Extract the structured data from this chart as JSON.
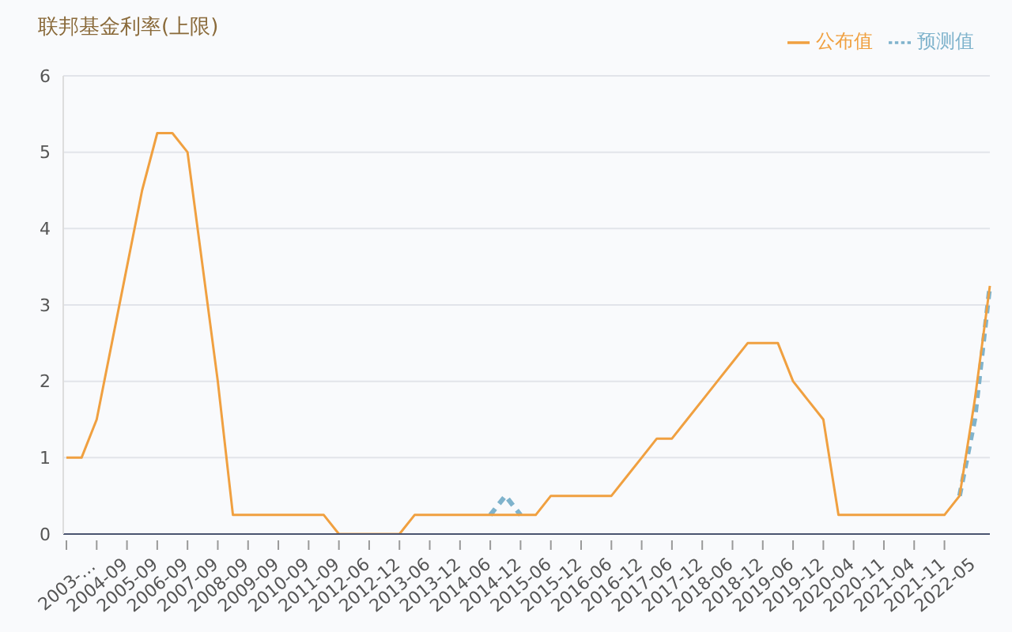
{
  "chart_data": {
    "type": "line",
    "title": "联邦基金利率(上限)",
    "categories": [
      "2003-…",
      null,
      "2004-09",
      null,
      "2005-09",
      null,
      "2006-09",
      null,
      "2007-09",
      null,
      "2008-09",
      null,
      "2009-09",
      null,
      "2010-09",
      null,
      "2011-09",
      null,
      "2012-06",
      null,
      "2012-12",
      null,
      "2013-06",
      null,
      "2013-12",
      null,
      "2014-06",
      null,
      "2014-12",
      null,
      "2015-06",
      null,
      "2015-12",
      null,
      "2016-06",
      null,
      "2016-12",
      null,
      "2017-06",
      null,
      "2017-12",
      null,
      "2018-06",
      null,
      "2018-12",
      null,
      "2019-06",
      null,
      "2019-12",
      null,
      "2020-04",
      null,
      "2020-11",
      null,
      "2021-04",
      null,
      "2021-11",
      null,
      "2022-05",
      null,
      null,
      null
    ],
    "series": [
      {
        "name": "预测值",
        "color": "#7fb3cc",
        "line_style": "dashed",
        "values": [
          null,
          null,
          null,
          null,
          null,
          null,
          null,
          null,
          null,
          null,
          null,
          null,
          null,
          null,
          null,
          null,
          null,
          null,
          null,
          null,
          null,
          null,
          null,
          null,
          null,
          null,
          null,
          null,
          0.25,
          0.5,
          0.25,
          null,
          null,
          null,
          null,
          null,
          null,
          null,
          null,
          null,
          null,
          null,
          null,
          null,
          null,
          null,
          null,
          null,
          null,
          null,
          null,
          null,
          null,
          null,
          null,
          null,
          null,
          null,
          null,
          0.5,
          1.5,
          3.25
        ]
      },
      {
        "name": "公布值",
        "color": "#f0a040",
        "line_style": "solid",
        "values": [
          1,
          1,
          1.5,
          2.5,
          3.5,
          4.5,
          5.25,
          5.25,
          5,
          3.5,
          2,
          0.25,
          0.25,
          0.25,
          0.25,
          0.25,
          0.25,
          0.25,
          0,
          0,
          0,
          0,
          0,
          0.25,
          0.25,
          0.25,
          0.25,
          0.25,
          0.25,
          0.25,
          0.25,
          0.25,
          0.5,
          0.5,
          0.5,
          0.5,
          0.5,
          0.75,
          1,
          1.25,
          1.25,
          1.5,
          1.75,
          2,
          2.25,
          2.5,
          2.5,
          2.5,
          2,
          1.75,
          1.5,
          0.25,
          0.25,
          0.25,
          0.25,
          0.25,
          0.25,
          0.25,
          0.25,
          0.5,
          1.75,
          3.25
        ]
      }
    ],
    "ylim": [
      0,
      6
    ],
    "yticks": [
      0,
      1,
      2,
      3,
      4,
      5,
      6
    ],
    "grid": "y",
    "legend": "top right",
    "marker": "none"
  }
}
